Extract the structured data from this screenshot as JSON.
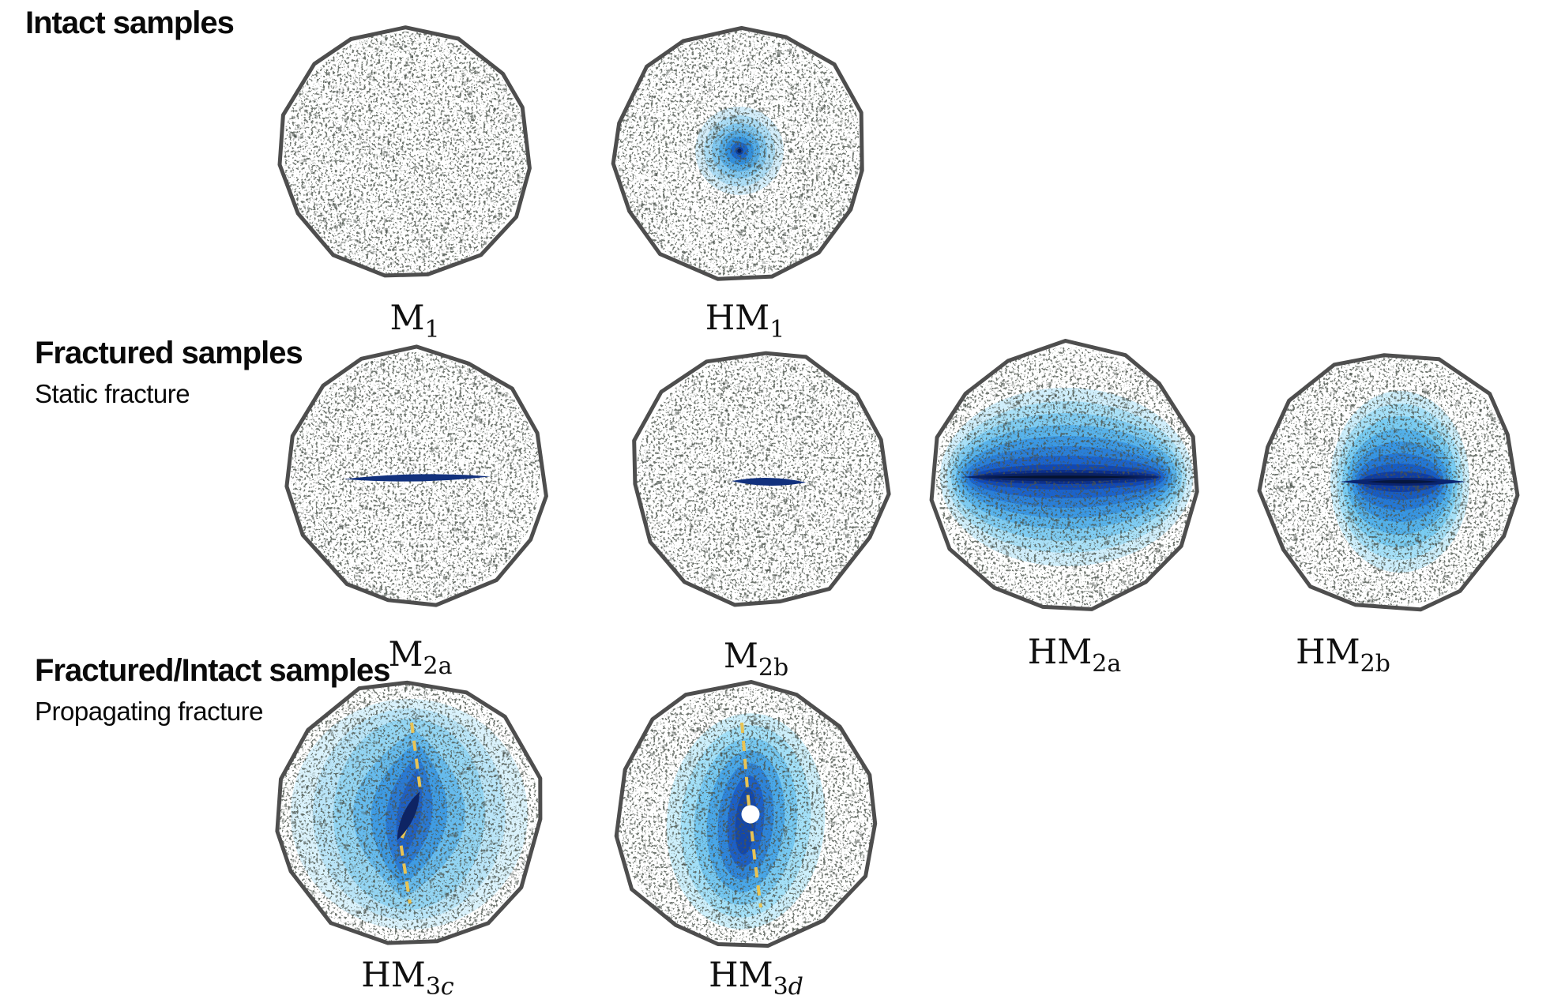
{
  "figure": {
    "background": "#ffffff",
    "outline_color": "#4e4e4e",
    "speckle_color": "#49514b",
    "rows": [
      {
        "title": "Intact samples",
        "subtitle": ""
      },
      {
        "title": "Fractured samples",
        "subtitle": "Static fracture"
      },
      {
        "title": "Fractured/Intact samples",
        "subtitle": "Propagating fracture"
      }
    ],
    "samples": [
      {
        "id": "M1",
        "row": 0,
        "label_main": "M",
        "label_sub": "1"
      },
      {
        "id": "HM1",
        "row": 0,
        "label_main": "HM",
        "label_sub": "1",
        "rings": [
          "#d3edfa",
          "#abdcf5",
          "#80c7ef",
          "#55ace6",
          "#3390dc",
          "#1c67c9",
          "#0d3e9d"
        ],
        "core_color": "#081f55"
      },
      {
        "id": "M2a",
        "row": 1,
        "label_main": "M",
        "label_sub": "2a",
        "fracture_color": "#12317d"
      },
      {
        "id": "M2b",
        "row": 1,
        "label_main": "M",
        "label_sub": "2b",
        "fracture_color": "#12317d"
      },
      {
        "id": "HM2a",
        "row": 1,
        "label_main": "HM",
        "label_sub": "2a",
        "bands": [
          "#d0eefb",
          "#a9e0f7",
          "#7fccf2",
          "#58b3eb",
          "#3b98e3",
          "#2a7fd8",
          "#1b63cc",
          "#1148b4"
        ],
        "inner_color": "#0c2f8a",
        "fracture_color": "#0a2263",
        "core_color": "#05122f"
      },
      {
        "id": "HM2b",
        "row": 1,
        "label_main": "HM",
        "label_sub": "2b",
        "bands": [
          "#cdeefb",
          "#a5e0f8",
          "#79ccf2",
          "#53b1ea",
          "#3795e2",
          "#2478d6",
          "#175cc4",
          "#0f3da3"
        ],
        "fracture_color": "#0a2470",
        "core_color": "#06163e"
      },
      {
        "id": "HM3c",
        "row": 2,
        "label_main": "HM",
        "label_sub": "3",
        "label_sub_it": "c",
        "bands": [
          "#daf2fc",
          "#bae5f8",
          "#93d5f3",
          "#66bbed",
          "#3f9ce4",
          "#2a7ad4",
          "#1f60c4"
        ],
        "fracture_color": "#0e2464",
        "dash_color": "#e8c455"
      },
      {
        "id": "HM3d",
        "row": 2,
        "label_main": "HM",
        "label_sub": "3",
        "label_sub_it": "d",
        "bands": [
          "#cdeffb",
          "#a3e0f8",
          "#76c8f1",
          "#49a7e8",
          "#2e85da",
          "#1c60c8",
          "#1347aa"
        ],
        "dash_color": "#e8c455",
        "marker_color": "#ffffff"
      }
    ]
  }
}
